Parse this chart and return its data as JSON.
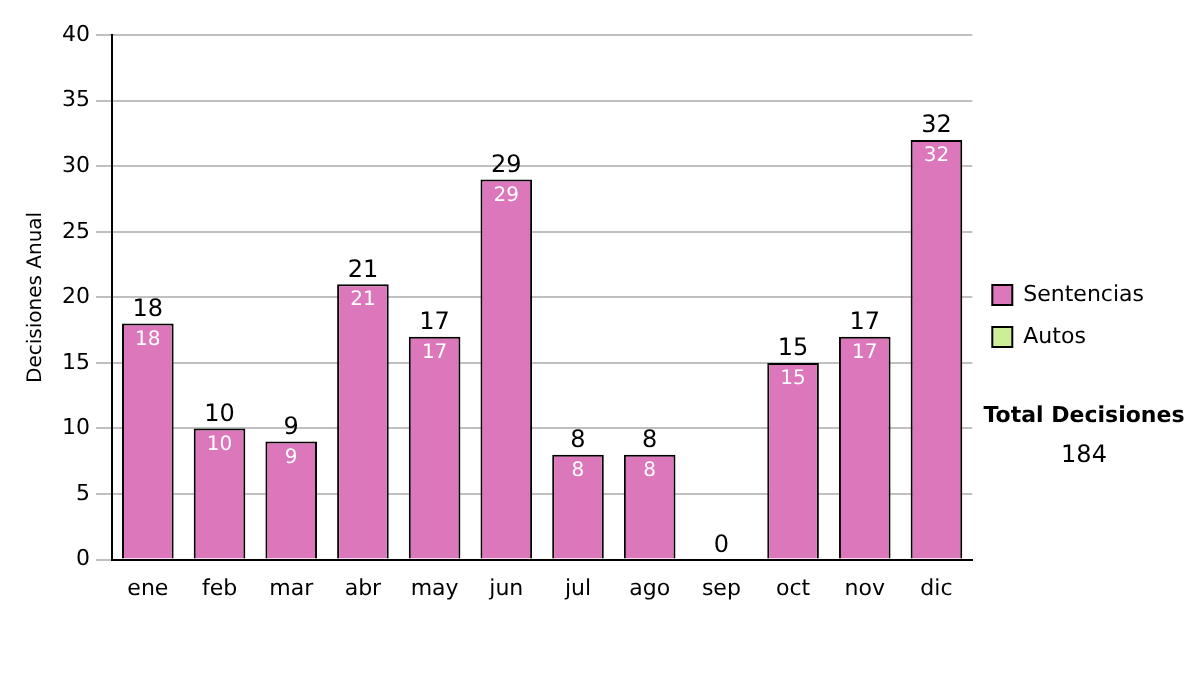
{
  "chart_data": {
    "type": "bar",
    "ylabel": "Decisiones Anual",
    "categories": [
      "ene",
      "feb",
      "mar",
      "abr",
      "may",
      "jun",
      "jul",
      "ago",
      "sep",
      "oct",
      "nov",
      "dic"
    ],
    "series": [
      {
        "name": "Sentencias",
        "color": "#dd77bb",
        "values": [
          18,
          10,
          9,
          21,
          17,
          29,
          8,
          8,
          0,
          15,
          17,
          32
        ],
        "value_labels": [
          "18",
          "10",
          "9",
          "21",
          "17",
          "29",
          "8",
          "8",
          null,
          "15",
          "17",
          "32"
        ]
      },
      {
        "name": "Autos",
        "color": "#ccee99",
        "values": [
          0,
          0,
          0,
          0,
          0,
          0,
          0,
          0,
          0,
          0,
          0,
          0
        ]
      }
    ],
    "stacked": true,
    "totals": [
      "18",
      "10",
      "9",
      "21",
      "17",
      "29",
      "8",
      "8",
      "0",
      "15",
      "17",
      "32"
    ],
    "ylim": [
      0,
      40
    ],
    "yticks": [
      0,
      5,
      10,
      15,
      20,
      25,
      30,
      35,
      40
    ],
    "grid": "y",
    "legend": "right",
    "annotations": [
      "Total Decisiones",
      "184"
    ]
  }
}
